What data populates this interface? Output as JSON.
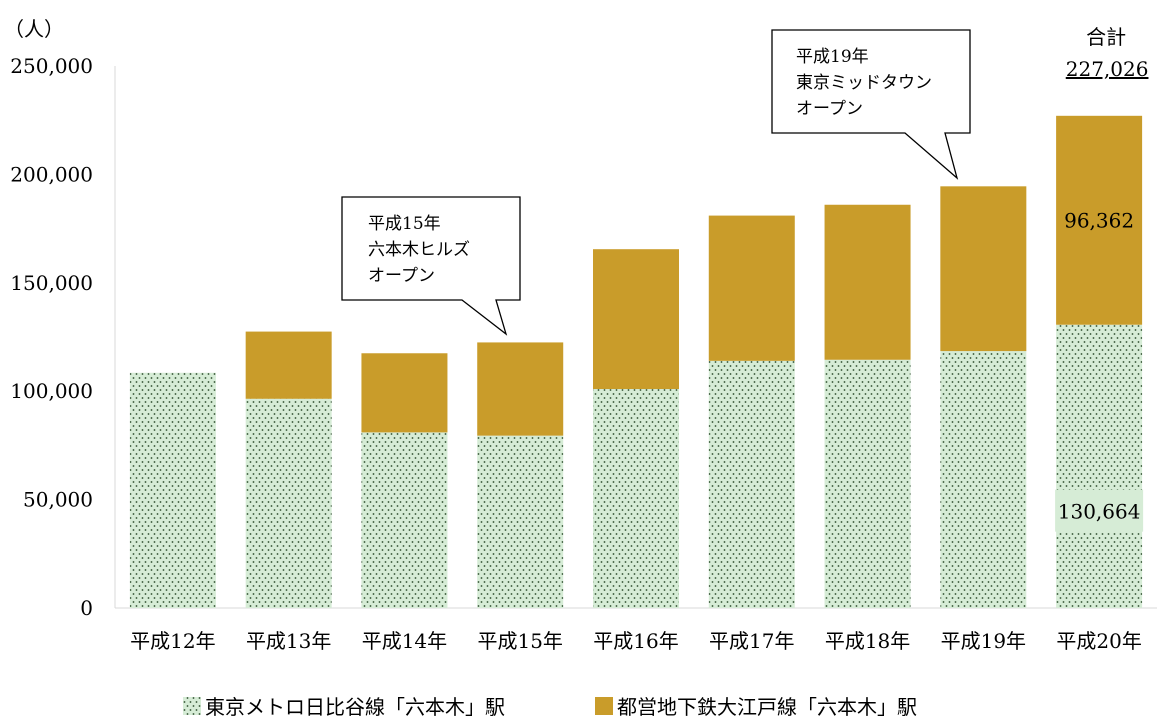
{
  "chart_data": {
    "type": "bar",
    "stacked": true,
    "unit_label": "（人）",
    "categories": [
      "平成12年",
      "平成13年",
      "平成14年",
      "平成15年",
      "平成16年",
      "平成17年",
      "平成18年",
      "平成19年",
      "平成20年"
    ],
    "series": [
      {
        "name": "東京メトロ日比谷線「六本木」駅",
        "pattern": "dots",
        "color": "#d6ecd6",
        "dot_color": "#2f4f2f",
        "values": [
          108500,
          96500,
          81000,
          79500,
          101000,
          114000,
          114500,
          118500,
          130664
        ]
      },
      {
        "name": "都営地下鉄大江戸線「六本木」駅",
        "color": "#c99c2a",
        "values": [
          0,
          31000,
          36500,
          43000,
          64500,
          67000,
          71500,
          76000,
          96362
        ]
      }
    ],
    "ylim": [
      0,
      250000
    ],
    "yticks": [
      "0",
      "50,000",
      "100,000",
      "150,000",
      "200,000",
      "250,000"
    ],
    "data_labels": [
      {
        "category": "平成20年",
        "series": 0,
        "text": "130,664"
      },
      {
        "category": "平成20年",
        "series": 1,
        "text": "96,362"
      }
    ],
    "total_label": {
      "category": "平成20年",
      "title": "合計",
      "value": "227,026"
    },
    "annotations": [
      {
        "category": "平成15年",
        "lines": [
          "平成15年",
          "六本木ヒルズ",
          "オープン"
        ]
      },
      {
        "category": "平成19年",
        "lines": [
          "平成19年",
          "東京ミッドタウン",
          "オープン"
        ]
      }
    ],
    "legend_position": "bottom",
    "grid": false
  }
}
